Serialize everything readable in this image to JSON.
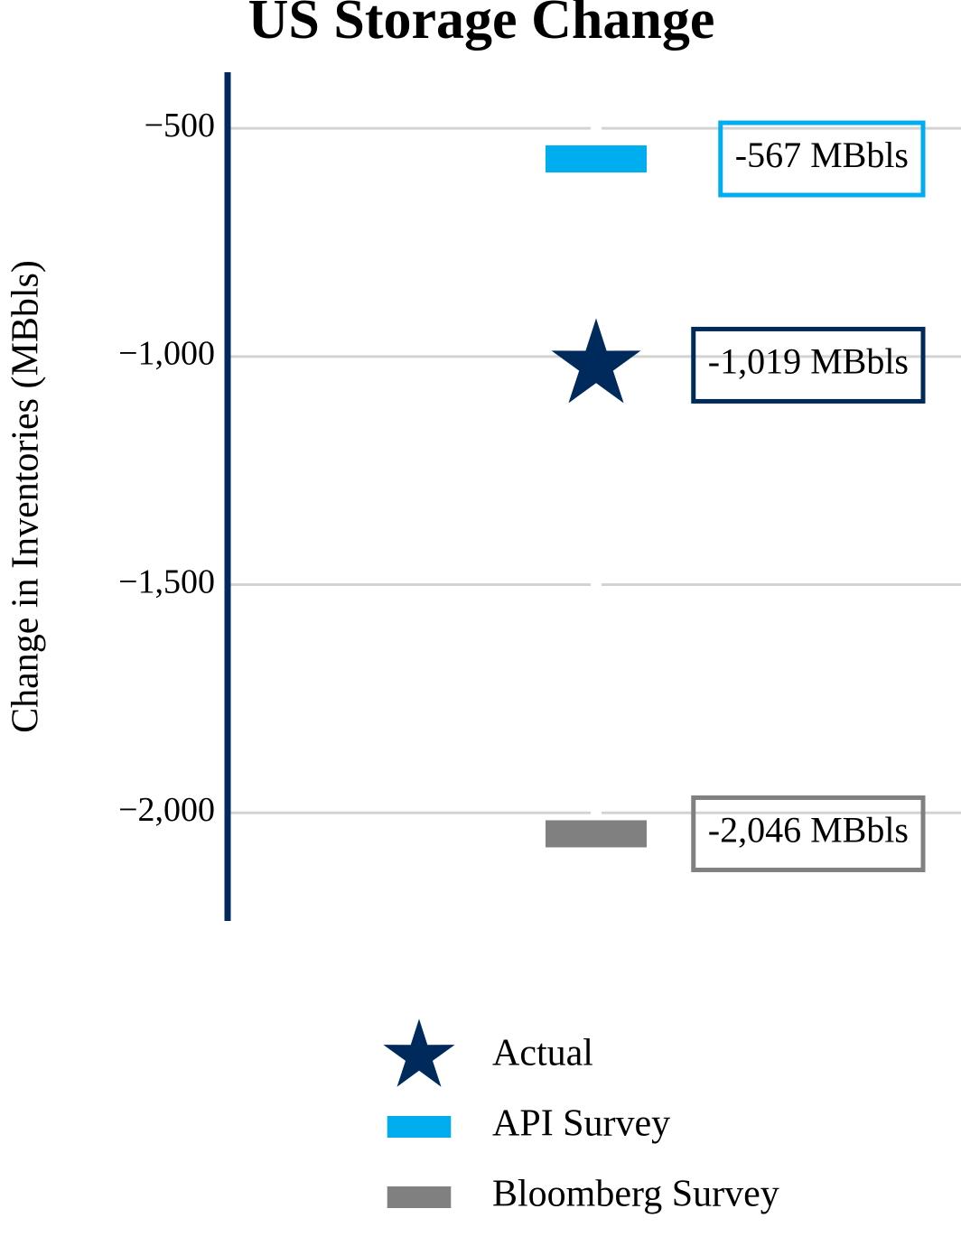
{
  "chart_data": {
    "type": "dot",
    "title": "US Storage Change",
    "y_label": "Change in Inventories (MBbls)",
    "ylim": [
      -2237,
      -377
    ],
    "yticks": [
      {
        "value": -500,
        "label": "−500"
      },
      {
        "value": -1000,
        "label": "−1,000"
      },
      {
        "value": -1500,
        "label": "−1,500"
      },
      {
        "value": -2000,
        "label": "−2,000"
      }
    ],
    "grid": true,
    "axis_color": "#002a5c",
    "series": [
      {
        "name": "Actual",
        "color": "#002a5c",
        "marker": "star",
        "values": [
          -1019
        ],
        "value_labels": [
          "-1,019 MBbls"
        ]
      },
      {
        "name": "API Survey",
        "color": "#00aeef",
        "marker": "bar",
        "values": [
          -567
        ],
        "value_labels": [
          "-567 MBbls"
        ]
      },
      {
        "name": "Bloomberg Survey",
        "color": "#808080",
        "marker": "bar",
        "values": [
          -2046
        ],
        "value_labels": [
          "-2,046 MBbls"
        ]
      }
    ]
  }
}
